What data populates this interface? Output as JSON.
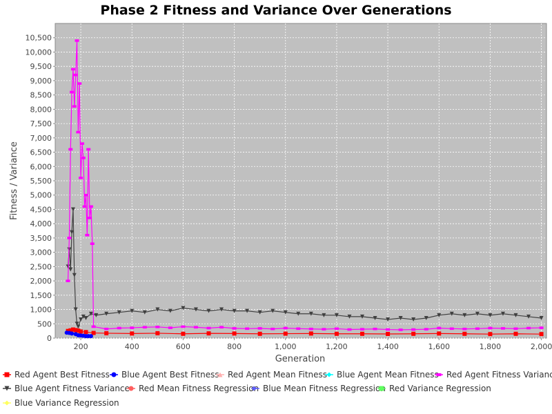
{
  "chart_data": {
    "type": "line",
    "title": "Phase 2 Fitness and Variance Over Generations",
    "xlabel": "Generation",
    "ylabel": "Fitness / Variance",
    "xlim": [
      100,
      2020
    ],
    "ylim": [
      0,
      11000
    ],
    "x_ticks": [
      200,
      400,
      600,
      800,
      1000,
      1200,
      1400,
      1600,
      1800,
      2000
    ],
    "x_tick_labels": [
      "200",
      "400",
      "600",
      "800",
      "1,000",
      "1,200",
      "1,400",
      "1,600",
      "1,800",
      "2,000"
    ],
    "y_ticks": [
      0,
      500,
      1000,
      1500,
      2000,
      2500,
      3000,
      3500,
      4000,
      4500,
      5000,
      5500,
      6000,
      6500,
      7000,
      7500,
      8000,
      8500,
      9000,
      9500,
      10000,
      10500
    ],
    "y_tick_labels": [
      "0",
      "500",
      "1,000",
      "1,500",
      "2,000",
      "2,500",
      "3,000",
      "3,500",
      "4,000",
      "4,500",
      "5,000",
      "5,500",
      "6,000",
      "6,500",
      "7,000",
      "7,500",
      "8,000",
      "8,500",
      "9,000",
      "9,500",
      "10,000",
      "10,500"
    ],
    "grid": true,
    "plot_background": "#c0c0c0",
    "legend_position": "bottom",
    "series": [
      {
        "name": "Red Agent Best Fitness",
        "color": "#ff0000",
        "marker": "square",
        "x": [
          150,
          160,
          170,
          180,
          190,
          200,
          220,
          250,
          300,
          400,
          500,
          600,
          700,
          800,
          900,
          1000,
          1100,
          1200,
          1300,
          1400,
          1500,
          1600,
          1700,
          1800,
          1900,
          2000
        ],
        "y": [
          250,
          270,
          300,
          280,
          260,
          230,
          210,
          180,
          170,
          160,
          170,
          150,
          165,
          160,
          150,
          155,
          160,
          150,
          150,
          145,
          150,
          160,
          150,
          140,
          150,
          140
        ]
      },
      {
        "name": "Blue Agent Best Fitness",
        "color": "#0000ff",
        "marker": "circle",
        "x": [
          145,
          155,
          165,
          180,
          190,
          200,
          210,
          220,
          230,
          240
        ],
        "y": [
          190,
          180,
          160,
          140,
          100,
          90,
          80,
          70,
          70,
          70
        ]
      },
      {
        "name": "Red Agent Mean Fitness",
        "color": "#ffafaf",
        "marker": "triangle-up",
        "x": [],
        "y": []
      },
      {
        "name": "Blue Agent Mean Fitness",
        "color": "#00ffff",
        "marker": "diamond",
        "x": [],
        "y": []
      },
      {
        "name": "Red Agent Fitness Variance",
        "color": "#ff00ff",
        "marker": "rect",
        "x": [
          150,
          155,
          160,
          165,
          170,
          175,
          180,
          185,
          190,
          195,
          200,
          205,
          210,
          215,
          220,
          225,
          230,
          235,
          240,
          245,
          250,
          300,
          350,
          400,
          450,
          500,
          550,
          600,
          650,
          700,
          750,
          800,
          850,
          900,
          950,
          1000,
          1050,
          1100,
          1150,
          1200,
          1250,
          1300,
          1350,
          1400,
          1450,
          1500,
          1550,
          1600,
          1650,
          1700,
          1750,
          1800,
          1850,
          1900,
          1950,
          2000
        ],
        "y": [
          2000,
          3500,
          6600,
          8600,
          9400,
          8100,
          9200,
          10400,
          7200,
          8900,
          5600,
          6800,
          6300,
          4600,
          5000,
          3600,
          6600,
          4200,
          4600,
          3300,
          400,
          320,
          350,
          360,
          380,
          390,
          360,
          400,
          380,
          350,
          380,
          340,
          330,
          340,
          320,
          350,
          330,
          320,
          310,
          330,
          300,
          310,
          320,
          300,
          290,
          300,
          310,
          350,
          330,
          320,
          330,
          350,
          340,
          330,
          350,
          360
        ]
      },
      {
        "name": "Blue Agent Fitness Variance",
        "color": "#404040",
        "marker": "triangle-down",
        "x": [
          150,
          155,
          160,
          165,
          170,
          175,
          180,
          185,
          190,
          200,
          210,
          220,
          240,
          260,
          300,
          350,
          400,
          450,
          500,
          550,
          600,
          650,
          700,
          750,
          800,
          850,
          900,
          950,
          1000,
          1050,
          1100,
          1150,
          1200,
          1250,
          1300,
          1350,
          1400,
          1450,
          1500,
          1550,
          1600,
          1650,
          1700,
          1750,
          1800,
          1850,
          1900,
          1950,
          2000
        ],
        "y": [
          2500,
          3100,
          2400,
          3700,
          4500,
          2200,
          1000,
          500,
          400,
          650,
          750,
          700,
          850,
          800,
          850,
          900,
          950,
          900,
          1000,
          950,
          1050,
          1000,
          950,
          1000,
          950,
          950,
          900,
          950,
          900,
          850,
          850,
          800,
          800,
          750,
          750,
          700,
          650,
          700,
          650,
          700,
          800,
          850,
          800,
          850,
          800,
          850,
          800,
          750,
          700
        ]
      },
      {
        "name": "Red Mean Fitness Regression",
        "color": "#ff5f5f",
        "marker": "circle",
        "x": [],
        "y": []
      },
      {
        "name": "Blue Mean Fitness Regression",
        "color": "#5f5fff",
        "marker": "triangle-right",
        "x": [],
        "y": []
      },
      {
        "name": "Red Variance Regression",
        "color": "#5fff5f",
        "marker": "square",
        "x": [],
        "y": []
      },
      {
        "name": "Blue Variance Regression",
        "color": "#ffff5f",
        "marker": "diamond",
        "x": [],
        "y": []
      }
    ]
  }
}
